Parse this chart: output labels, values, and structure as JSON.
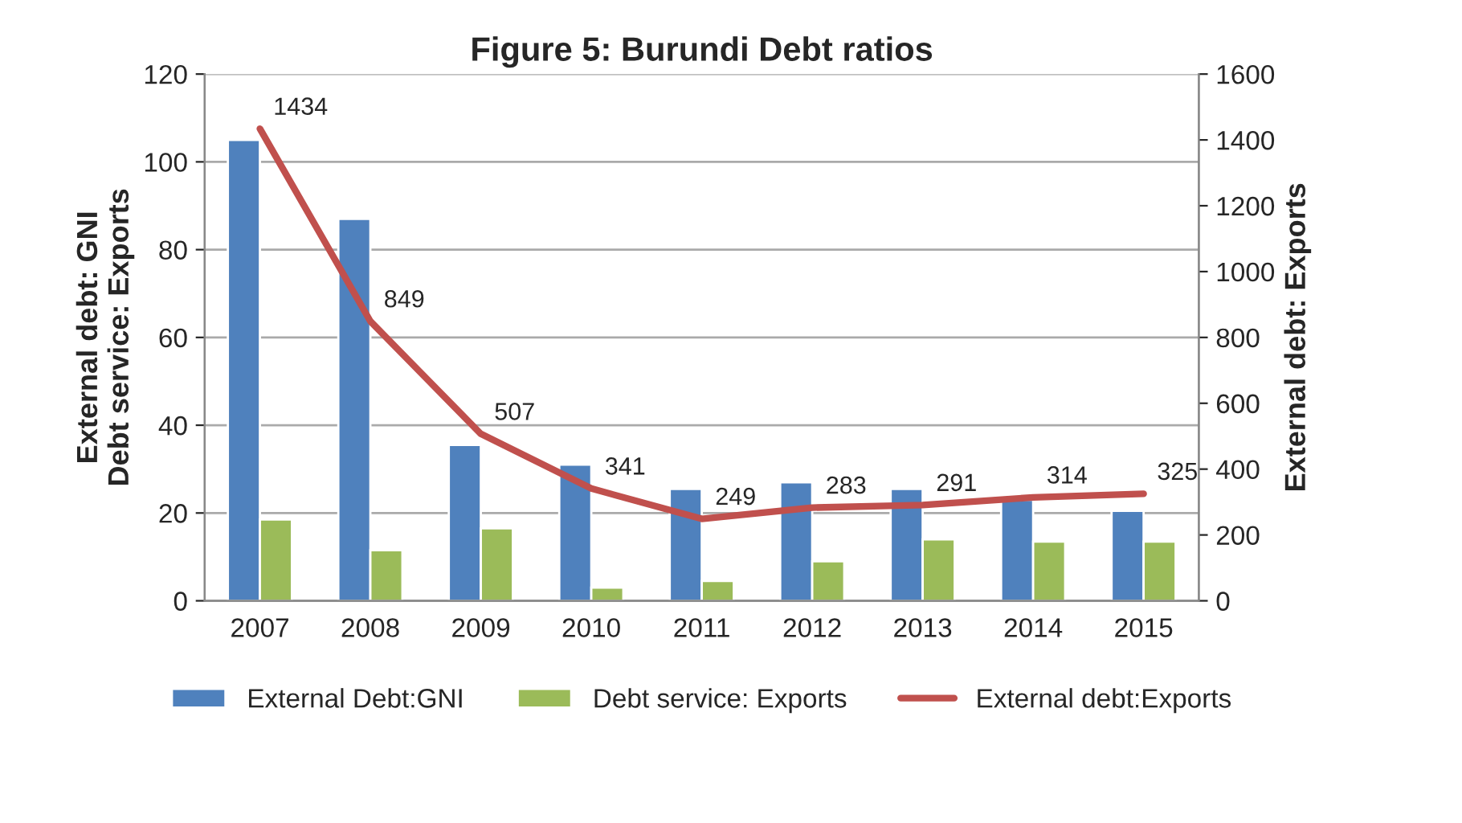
{
  "chart_data": {
    "type": "bar",
    "title": "Figure 5: Burundi Debt ratios",
    "categories": [
      "2007",
      "2008",
      "2009",
      "2010",
      "2011",
      "2012",
      "2013",
      "2014",
      "2015"
    ],
    "series": [
      {
        "name": "External Debt:GNI",
        "color": "#4f81bd",
        "values": [
          105,
          87,
          35.5,
          31,
          25.5,
          27,
          25.5,
          23,
          20.5
        ]
      },
      {
        "name": "Debt service: Exports",
        "color": "#9bbb59",
        "values": [
          18.5,
          11.5,
          16.5,
          3,
          4.5,
          9,
          14,
          13.5,
          13.5
        ]
      },
      {
        "name": "External debt:Exports",
        "color": "#c0504d",
        "type": "line",
        "axis": "y2",
        "data_labels": true,
        "values": [
          1434,
          849,
          507,
          341,
          249,
          283,
          291,
          314,
          325
        ]
      }
    ],
    "ylabel": "External debt: GNI\nDebt service: Exports",
    "y2label": "External debt: Exports",
    "ylim": [
      0,
      120
    ],
    "yticks": [
      0,
      20,
      40,
      60,
      80,
      100,
      120
    ],
    "y2lim": [
      0,
      1600
    ],
    "y2ticks": [
      0,
      200,
      400,
      600,
      800,
      1000,
      1200,
      1400,
      1600
    ],
    "grid": "y",
    "legend": "bottom",
    "marker": "none",
    "line_style": "solid"
  }
}
